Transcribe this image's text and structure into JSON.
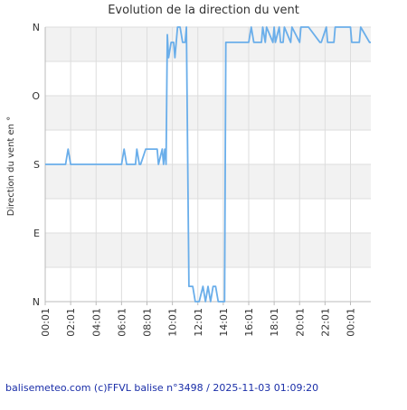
{
  "footer": "balisemeteo.com (c)FFVL balise n°3498 / 2025-11-03 01:09:20",
  "colors": {
    "line": "#6aaeea",
    "band": "#f2f2f2",
    "grid": "#dddddd",
    "axis": "#bbbbbb",
    "footer": "#1a2ea8"
  },
  "chart_data": {
    "type": "line",
    "title": "Evolution de la direction du vent",
    "ylabel": "Direction du vent en °",
    "y_categories": [
      "N",
      "E",
      "S",
      "O",
      "N"
    ],
    "y_values": [
      0,
      90,
      180,
      270,
      360
    ],
    "ylim": [
      0,
      360
    ],
    "x_tick_labels": [
      "00:01",
      "02:01",
      "04:01",
      "06:01",
      "08:01",
      "10:01",
      "12:01",
      "14:01",
      "16:01",
      "18:01",
      "20:01",
      "22:01",
      "00:01"
    ],
    "x_unit": "hour",
    "xlim": [
      0,
      25.6
    ],
    "series": [
      {
        "x": [
          0,
          1.6,
          1.8,
          2.0,
          6.0,
          6.2,
          6.4,
          7.1,
          7.2,
          7.4,
          7.5,
          7.9,
          8.1,
          8.8,
          8.9,
          9.2,
          9.3,
          9.4,
          9.5,
          9.6,
          9.7,
          9.9,
          10.1,
          10.2,
          10.4,
          10.6,
          10.8,
          11.0,
          11.1,
          11.3,
          11.6,
          11.8,
          12.1,
          12.4,
          12.6,
          12.8,
          13.0,
          13.2,
          13.4,
          13.6,
          13.8,
          14.1,
          14.2,
          14.4,
          16.0,
          16.2,
          16.4,
          17.0,
          17.1,
          17.3,
          17.4,
          17.9,
          18.0,
          18.1,
          18.4,
          18.5,
          18.7,
          18.8,
          19.3,
          19.4,
          20.0,
          20.1,
          20.6,
          20.7,
          21.6,
          21.7,
          22.1,
          22.2,
          22.7,
          22.8,
          24.0,
          24.1,
          24.2,
          24.6,
          24.7,
          24.8,
          25.5,
          25.6
        ],
        "y": [
          180,
          180,
          200,
          180,
          180,
          200,
          180,
          180,
          200,
          180,
          180,
          200,
          200,
          200,
          180,
          200,
          180,
          200,
          180,
          350,
          320,
          340,
          340,
          320,
          360,
          360,
          340,
          340,
          360,
          20,
          20,
          0,
          0,
          20,
          0,
          20,
          0,
          20,
          20,
          0,
          0,
          0,
          340,
          340,
          340,
          360,
          340,
          340,
          360,
          340,
          360,
          340,
          360,
          340,
          360,
          340,
          340,
          360,
          340,
          360,
          340,
          360,
          360,
          360,
          340,
          340,
          360,
          340,
          340,
          360,
          360,
          340,
          340,
          340,
          340,
          360,
          340,
          340
        ]
      }
    ]
  }
}
